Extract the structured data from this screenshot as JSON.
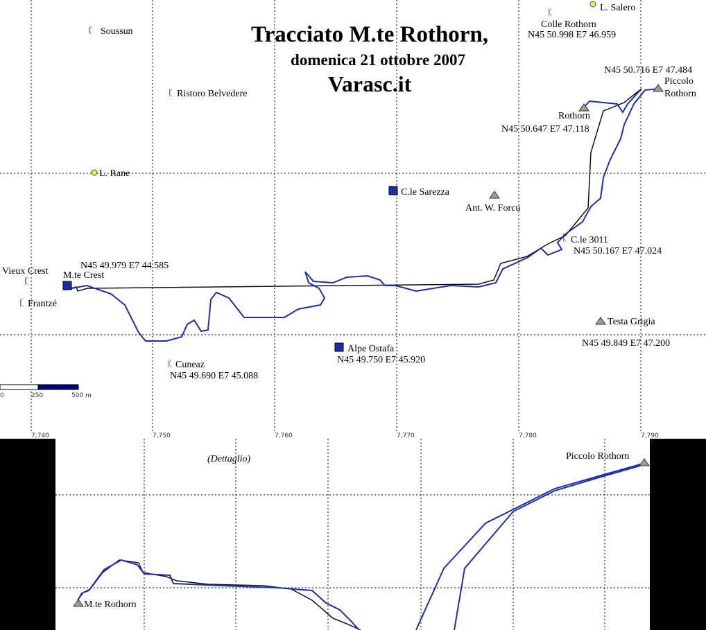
{
  "title": {
    "line1": "Tracciato M.te Rothorn,",
    "line2": "domenica 21 ottobre 2007",
    "line3": "Varasc.it"
  },
  "places": [
    {
      "label": "L. Salero"
    },
    {
      "label": "Colle Rothorn",
      "coords": "N45 50.998 E7 46.959"
    },
    {
      "label": "Soussun"
    },
    {
      "label": "Ristoro Belvedere"
    },
    {
      "label": [
        "Piccolo",
        "Rothorn"
      ],
      "coords": "N45 50.716 E7 47.484"
    },
    {
      "label": "Rothorn",
      "coords": "N45 50.647 E7 47.118"
    },
    {
      "label": "L. Rane"
    },
    {
      "label": "C.le Sarezza"
    },
    {
      "label": "Ant. W. Forcu"
    },
    {
      "label": "C.le 3011",
      "coords": "N45 50.167 E7 47.024"
    },
    {
      "label": "M.te Crest",
      "coords": "N45 49.979 E7 44.585"
    },
    {
      "label": "Vieux Crest"
    },
    {
      "label": "Frantzé"
    },
    {
      "label": "Testa Grigia",
      "coords": "N45 49.849 E7 47.200"
    },
    {
      "label": "Alpe Ostafa",
      "coords": "N45 49.750 E7 45.920"
    },
    {
      "label": "Cuneaz",
      "coords": "N45 49.690 E7 45.088"
    }
  ],
  "scale": [
    "0",
    "250",
    "500 m"
  ],
  "axis_ticks": [
    "7,740",
    "7,750",
    "7,760",
    "7,770",
    "7,780",
    "7,790"
  ],
  "detail": {
    "label": "(Dettaglio)",
    "places": [
      "Piccolo Rothorn",
      "M.te Rothorn"
    ]
  }
}
